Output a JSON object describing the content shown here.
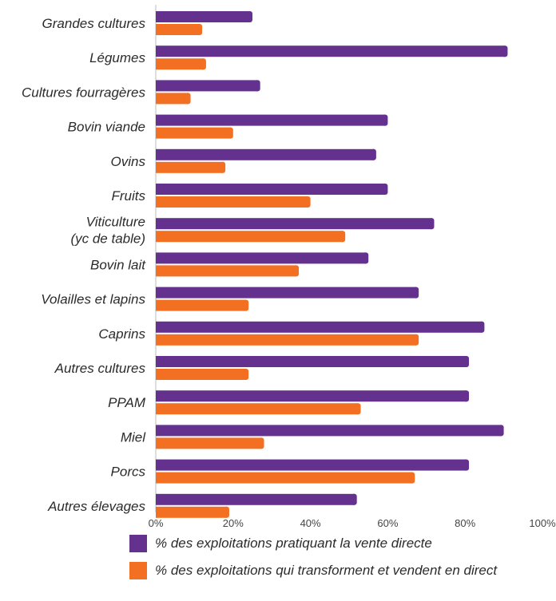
{
  "chart_data": {
    "type": "bar",
    "orientation": "horizontal",
    "categories": [
      "Grandes cultures",
      "Légumes",
      "Cultures fourragères",
      "Bovin viande",
      "Ovins",
      "Fruits",
      "Viticulture\n(yc de table)",
      "Bovin lait",
      "Volailles et lapins",
      "Caprins",
      "Autres cultures",
      "PPAM",
      "Miel",
      "Porcs",
      "Autres élevages"
    ],
    "series": [
      {
        "name": "% des exploitations pratiquant la vente directe",
        "color": "#65318f",
        "values": [
          25,
          91,
          27,
          60,
          57,
          60,
          72,
          55,
          68,
          85,
          81,
          81,
          90,
          81,
          52
        ]
      },
      {
        "name": "% des exploitations qui transforment et vendent en direct",
        "color": "#f36f21",
        "values": [
          12,
          13,
          9,
          20,
          18,
          40,
          49,
          37,
          24,
          68,
          24,
          53,
          28,
          67,
          19
        ]
      }
    ],
    "xlim": [
      0,
      100
    ],
    "xticks": [
      "0%",
      "20%",
      "40%",
      "60%",
      "80%",
      "100%"
    ],
    "grid": false,
    "legend_position": "bottom"
  }
}
